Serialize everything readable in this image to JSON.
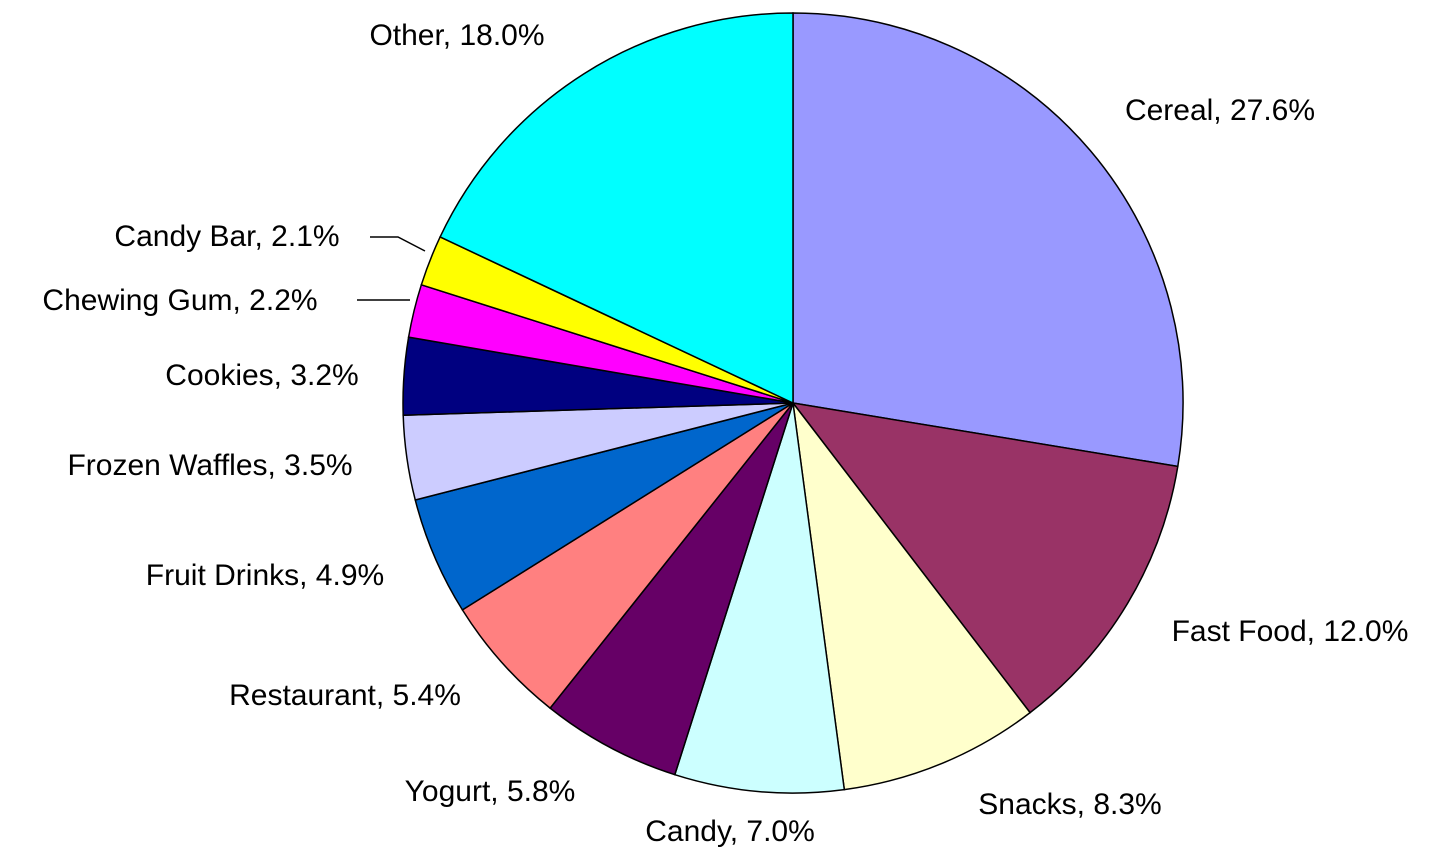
{
  "chart_data": {
    "type": "pie",
    "categories": [
      "Cereal, 27.6%",
      "Fast Food, 12.0%",
      "Snacks, 8.3%",
      "Candy, 7.0%",
      "Yogurt, 5.8%",
      "Restaurant, 5.4%",
      "Fruit Drinks, 4.9%",
      "Frozen Waffles, 3.5%",
      "Cookies, 3.2%",
      "Chewing Gum, 2.2%",
      "Candy Bar, 2.1%",
      "Other, 18.0%"
    ],
    "values": [
      27.6,
      12.0,
      8.3,
      7.0,
      5.8,
      5.4,
      4.9,
      3.5,
      3.2,
      2.2,
      2.1,
      18.0
    ],
    "colors": [
      "#9999ff",
      "#993366",
      "#ffffcc",
      "#ccffff",
      "#660066",
      "#ff8080",
      "#0066cc",
      "#ccccff",
      "#000080",
      "#ff00ff",
      "#ffff00",
      "#00ffff"
    ]
  }
}
